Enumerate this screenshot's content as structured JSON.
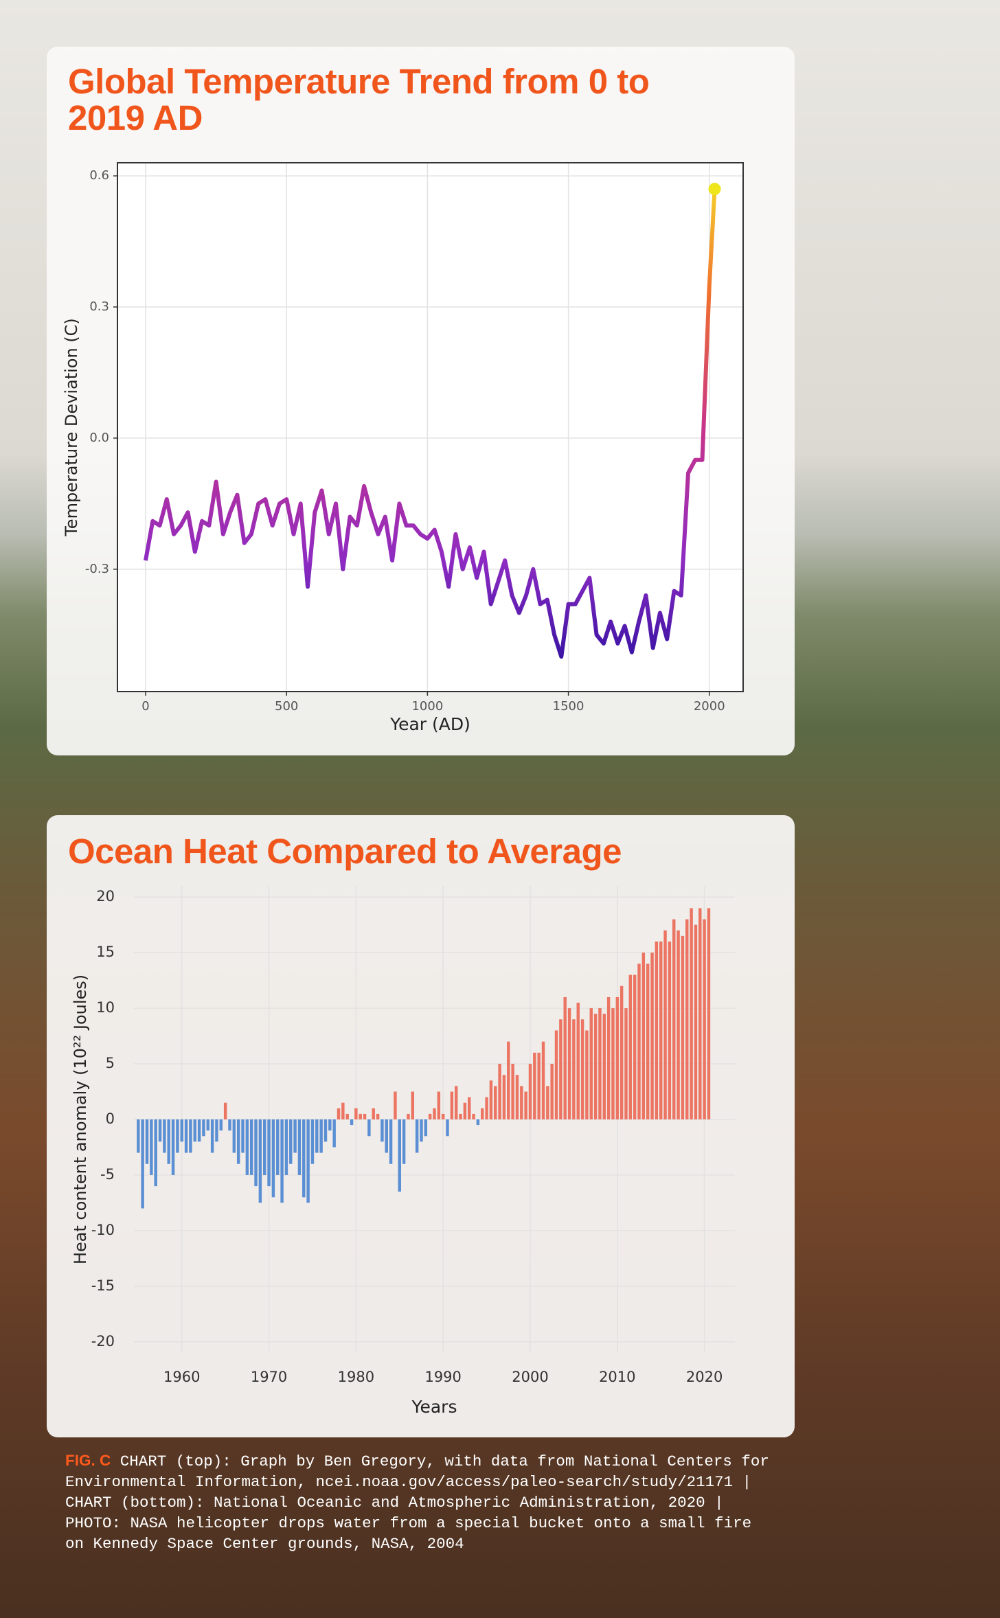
{
  "chart_data": [
    {
      "type": "line",
      "title": "Global Temperature Trend from 0 to 2019 AD",
      "xlabel": "Year (AD)",
      "ylabel": "Temperature Deviation (C)",
      "x": [
        0,
        25,
        50,
        75,
        100,
        125,
        150,
        175,
        200,
        225,
        250,
        275,
        300,
        325,
        350,
        375,
        400,
        425,
        450,
        475,
        500,
        525,
        550,
        575,
        600,
        625,
        650,
        675,
        700,
        725,
        750,
        775,
        800,
        825,
        850,
        875,
        900,
        925,
        950,
        975,
        1000,
        1025,
        1050,
        1075,
        1100,
        1125,
        1150,
        1175,
        1200,
        1225,
        1250,
        1275,
        1300,
        1325,
        1350,
        1375,
        1400,
        1425,
        1450,
        1475,
        1500,
        1525,
        1550,
        1575,
        1600,
        1625,
        1650,
        1675,
        1700,
        1725,
        1750,
        1775,
        1800,
        1825,
        1850,
        1875,
        1900,
        1925,
        1950,
        1975,
        2000,
        2019
      ],
      "values": [
        -0.28,
        -0.19,
        -0.2,
        -0.14,
        -0.22,
        -0.2,
        -0.17,
        -0.26,
        -0.19,
        -0.2,
        -0.1,
        -0.22,
        -0.17,
        -0.13,
        -0.24,
        -0.22,
        -0.15,
        -0.14,
        -0.2,
        -0.15,
        -0.14,
        -0.22,
        -0.15,
        -0.34,
        -0.17,
        -0.12,
        -0.22,
        -0.15,
        -0.3,
        -0.18,
        -0.2,
        -0.11,
        -0.17,
        -0.22,
        -0.18,
        -0.28,
        -0.15,
        -0.2,
        -0.2,
        -0.22,
        -0.23,
        -0.21,
        -0.26,
        -0.34,
        -0.22,
        -0.3,
        -0.25,
        -0.32,
        -0.26,
        -0.38,
        -0.33,
        -0.28,
        -0.36,
        -0.4,
        -0.36,
        -0.3,
        -0.38,
        -0.37,
        -0.45,
        -0.5,
        -0.38,
        -0.38,
        -0.35,
        -0.32,
        -0.45,
        -0.47,
        -0.42,
        -0.47,
        -0.43,
        -0.49,
        -0.42,
        -0.36,
        -0.48,
        -0.4,
        -0.46,
        -0.35,
        -0.36,
        -0.08,
        -0.05,
        -0.05,
        0.35,
        0.57
      ],
      "xlim": [
        -100,
        2120
      ],
      "ylim": [
        -0.58,
        0.63
      ],
      "xticks": [
        0,
        500,
        1000,
        1500,
        2000
      ],
      "yticks": [
        0.6,
        0.3,
        {
          "value": 0,
          "label": "0.0"
        },
        -0.3
      ],
      "grid": true,
      "line_colors": [
        "#1e0c9a",
        "#8e2bc2",
        "#c8348a",
        "#f0702e",
        "#f5e52a"
      ],
      "marker_color": "#eee51a"
    },
    {
      "type": "bar",
      "title": "Ocean Heat Compared to Average",
      "xlabel": "Years",
      "ylabel": "Heat content anomaly (10²² Joules)",
      "x": [
        1955,
        1955.5,
        1956,
        1956.5,
        1957,
        1957.5,
        1958,
        1958.5,
        1959,
        1959.5,
        1960,
        1960.5,
        1961,
        1961.5,
        1962,
        1962.5,
        1963,
        1963.5,
        1964,
        1964.5,
        1965,
        1965.5,
        1966,
        1966.5,
        1967,
        1967.5,
        1968,
        1968.5,
        1969,
        1969.5,
        1970,
        1970.5,
        1971,
        1971.5,
        1972,
        1972.5,
        1973,
        1973.5,
        1974,
        1974.5,
        1975,
        1975.5,
        1976,
        1976.5,
        1977,
        1977.5,
        1978,
        1978.5,
        1979,
        1979.5,
        1980,
        1980.5,
        1981,
        1981.5,
        1982,
        1982.5,
        1983,
        1983.5,
        1984,
        1984.5,
        1985,
        1985.5,
        1986,
        1986.5,
        1987,
        1987.5,
        1988,
        1988.5,
        1989,
        1989.5,
        1990,
        1990.5,
        1991,
        1991.5,
        1992,
        1992.5,
        1993,
        1993.5,
        1994,
        1994.5,
        1995,
        1995.5,
        1996,
        1996.5,
        1997,
        1997.5,
        1998,
        1998.5,
        1999,
        1999.5,
        2000,
        2000.5,
        2001,
        2001.5,
        2002,
        2002.5,
        2003,
        2003.5,
        2004,
        2004.5,
        2005,
        2005.5,
        2006,
        2006.5,
        2007,
        2007.5,
        2008,
        2008.5,
        2009,
        2009.5,
        2010,
        2010.5,
        2011,
        2011.5,
        2012,
        2012.5,
        2013,
        2013.5,
        2014,
        2014.5,
        2015,
        2015.5,
        2016,
        2016.5,
        2017,
        2017.5,
        2018,
        2018.5,
        2019,
        2019.5,
        2020,
        2020.5
      ],
      "values": [
        -3,
        -8,
        -4,
        -5,
        -6,
        -2,
        -3,
        -4,
        -5,
        -3,
        -2,
        -3,
        -3,
        -2,
        -2,
        -1.5,
        -1,
        -3,
        -2,
        -1,
        1.5,
        -1,
        -3,
        -4,
        -3,
        -5,
        -5,
        -6,
        -7.5,
        -5,
        -6,
        -7,
        -5,
        -7.5,
        -5,
        -4,
        -3,
        -5,
        -7,
        -7.5,
        -4,
        -3,
        -3,
        -2,
        -1,
        -2.5,
        1,
        1.5,
        0.5,
        -0.5,
        1,
        0.5,
        0.5,
        -1.5,
        1,
        0.5,
        -2,
        -3,
        -4,
        2.5,
        -6.5,
        -4,
        0.5,
        2.5,
        -3,
        -2,
        -1.5,
        0.5,
        1,
        2.5,
        0.5,
        -1.5,
        2.5,
        3,
        0.5,
        1.5,
        2,
        0.5,
        -0.5,
        1,
        2,
        3.5,
        3,
        5,
        4,
        7,
        5,
        4,
        3,
        2.5,
        5,
        6,
        6,
        7,
        3,
        5,
        8,
        9,
        11,
        10,
        9,
        10.5,
        9,
        8,
        10,
        9.5,
        10,
        9.5,
        11,
        10,
        11,
        12,
        10,
        13,
        13,
        14,
        15,
        14,
        15,
        16,
        16,
        17,
        16,
        18,
        17,
        16.5,
        18,
        19,
        17.5,
        19,
        18,
        19
      ],
      "xlim": [
        1954.5,
        2023.5
      ],
      "ylim": [
        -21,
        21
      ],
      "xticks": [
        1960,
        1970,
        1980,
        1990,
        2000,
        2010,
        2020
      ],
      "yticks": [
        20,
        15,
        10,
        5,
        0,
        -5,
        -10,
        -15,
        -20
      ],
      "grid": true,
      "positive_color": "#ec7462",
      "negative_color": "#5b8fd4"
    }
  ],
  "caption": {
    "label": "FIG. C",
    "lines": [
      " CHART (top): Graph by Ben Gregory, with data from National Centers for",
      "Environmental Information, ncei.noaa.gov/access/paleo-search/study/21171 |",
      "CHART (bottom): National Oceanic and Atmospheric Administration, 2020 |",
      "PHOTO: NASA helicopter drops water from a special bucket onto a small fire",
      "on Kennedy Space Center grounds, NASA, 2004"
    ]
  }
}
